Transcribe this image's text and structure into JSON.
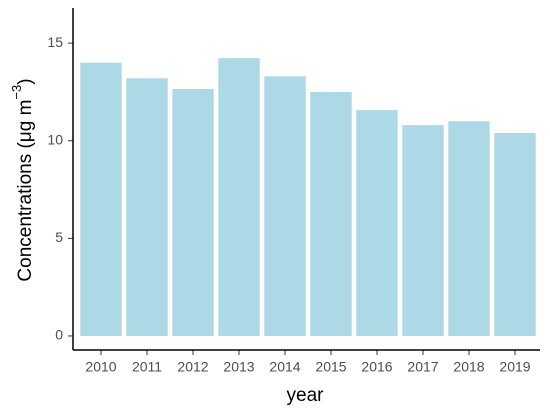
{
  "chart_data": {
    "type": "bar",
    "x_label": "year",
    "y_label": "Concentrations (μg m",
    "y_label_superscript": "−3",
    "y_label_end": ")",
    "categories": [
      "2010",
      "2011",
      "2012",
      "2013",
      "2014",
      "2015",
      "2016",
      "2017",
      "2018",
      "2019"
    ],
    "values": [
      14.0,
      13.2,
      12.65,
      14.23,
      13.3,
      12.5,
      11.57,
      10.8,
      11.0,
      10.4
    ],
    "color": "#add8e6",
    "ylim": [
      -0.72,
      16.8
    ],
    "yticks": [
      0,
      5,
      10,
      15
    ],
    "grid": false
  }
}
